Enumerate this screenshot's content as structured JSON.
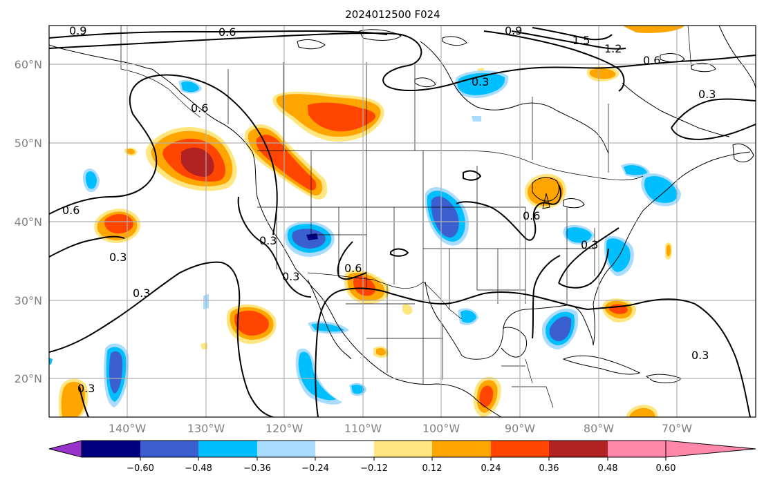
{
  "title": "2024012500 F024",
  "lat_ticks": [
    "60°N",
    "50°N",
    "40°N",
    "30°N",
    "20°N"
  ],
  "lon_ticks": [
    "140°W",
    "130°W",
    "120°W",
    "110°W",
    "100°W",
    "90°W",
    "80°W",
    "70°W"
  ],
  "colorbar": {
    "labels": [
      "−0.60",
      "−0.48",
      "−0.36",
      "−0.24",
      "−0.12",
      "0.12",
      "0.24",
      "0.36",
      "0.48",
      "0.60"
    ],
    "colors": [
      "#9933cc",
      "#000080",
      "#3b5fcf",
      "#00bfff",
      "#aadcff",
      "#ffffff",
      "#ffe680",
      "#ffa500",
      "#ff4500",
      "#b22222",
      "#ff88aa"
    ]
  },
  "contour_labels": [
    "0.9",
    "0.6",
    "0.6",
    "0.6",
    "0.3",
    "0.3",
    "0.3",
    "0.3",
    "0.3",
    "0.3",
    "0.6",
    "0.6",
    "0.3",
    "0.3",
    "0.6",
    "0.3",
    "1.5",
    "1.2",
    "0.9"
  ],
  "colors": {
    "land_line": "#000000",
    "grid": "#b0b0b0",
    "tick": "#808080"
  }
}
